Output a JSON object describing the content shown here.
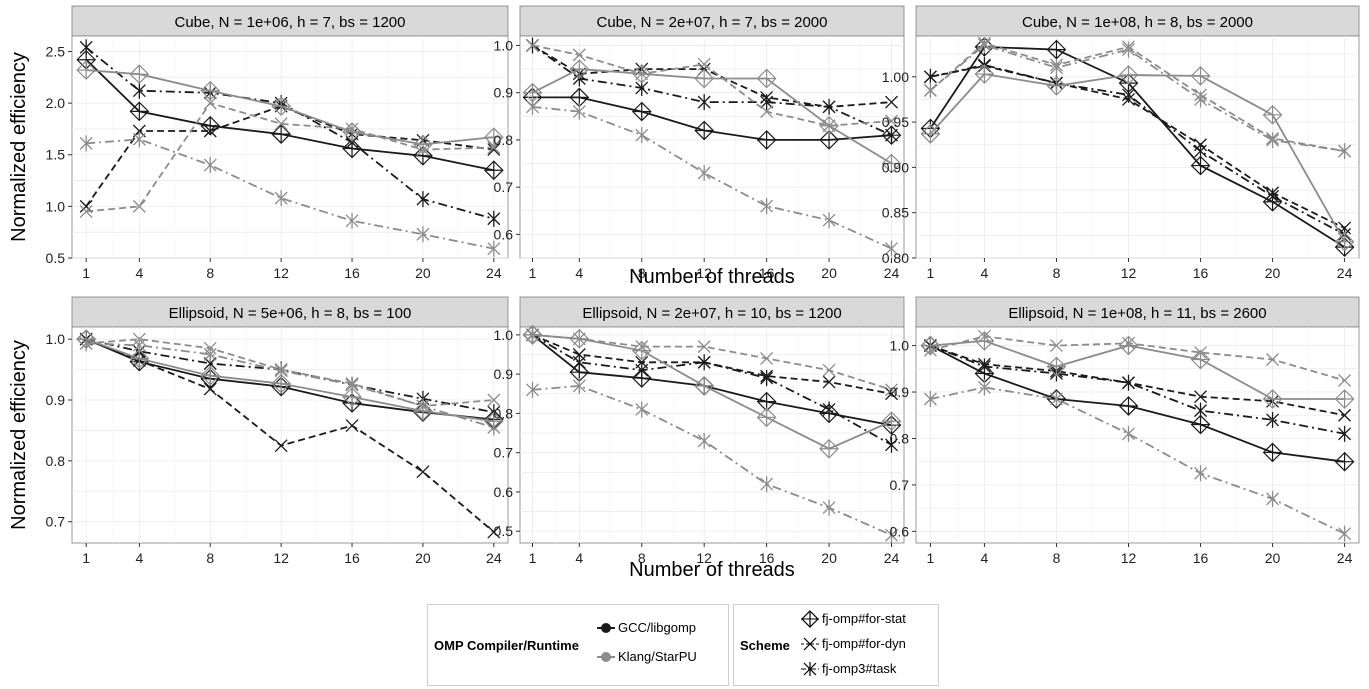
{
  "chart_data": {
    "type": "line",
    "y_axis_label": "Normalized efficiency",
    "x_axis_label": "Number of threads",
    "x_ticks": [
      1,
      4,
      8,
      12,
      16,
      20,
      24
    ],
    "panels": [
      {
        "title": "Cube, N = 1e+06, h = 7, bs = 1200",
        "ylim": [
          0.5,
          2.65
        ],
        "yticks": [
          "0.5",
          "1.0",
          "1.5",
          "2.0",
          "2.5"
        ],
        "series": [
          {
            "runtime": "GCC/libgomp",
            "scheme": "fj-omp#for-stat",
            "values": [
              2.42,
              1.92,
              1.78,
              1.7,
              1.56,
              1.49,
              1.35
            ]
          },
          {
            "runtime": "GCC/libgomp",
            "scheme": "fj-omp#for-dyn",
            "values": [
              1.0,
              1.73,
              1.73,
              1.97,
              1.7,
              1.64,
              1.55
            ]
          },
          {
            "runtime": "GCC/libgomp",
            "scheme": "fj-omp3#task",
            "values": [
              2.54,
              2.12,
              2.1,
              2.0,
              1.62,
              1.07,
              0.88
            ]
          },
          {
            "runtime": "Klang/StarPU",
            "scheme": "fj-omp#for-stat",
            "values": [
              2.32,
              2.28,
              2.12,
              1.97,
              1.72,
              1.6,
              1.67
            ]
          },
          {
            "runtime": "Klang/StarPU",
            "scheme": "fj-omp#for-dyn",
            "values": [
              0.95,
              1.0,
              2.0,
              1.8,
              1.75,
              1.55,
              1.57
            ]
          },
          {
            "runtime": "Klang/StarPU",
            "scheme": "fj-omp3#task",
            "values": [
              1.61,
              1.65,
              1.4,
              1.08,
              0.86,
              0.73,
              0.59
            ]
          }
        ]
      },
      {
        "title": "Cube, N = 2e+07, h = 7, bs = 2000",
        "ylim": [
          0.55,
          1.02
        ],
        "yticks": [
          "0.6",
          "0.7",
          "0.8",
          "0.9",
          "1.0"
        ],
        "series": [
          {
            "runtime": "GCC/libgomp",
            "scheme": "fj-omp#for-stat",
            "values": [
              0.89,
              0.89,
              0.86,
              0.82,
              0.8,
              0.8,
              0.81
            ]
          },
          {
            "runtime": "GCC/libgomp",
            "scheme": "fj-omp#for-dyn",
            "values": [
              1.0,
              0.94,
              0.95,
              0.95,
              0.89,
              0.87,
              0.88
            ]
          },
          {
            "runtime": "GCC/libgomp",
            "scheme": "fj-omp3#task",
            "values": [
              1.0,
              0.93,
              0.91,
              0.88,
              0.88,
              0.87,
              0.81
            ]
          },
          {
            "runtime": "Klang/StarPU",
            "scheme": "fj-omp#for-stat",
            "values": [
              0.9,
              0.95,
              0.94,
              0.93,
              0.93,
              0.83,
              0.75
            ]
          },
          {
            "runtime": "Klang/StarPU",
            "scheme": "fj-omp#for-dyn",
            "values": [
              1.0,
              0.98,
              0.94,
              0.96,
              0.86,
              0.83,
              0.84
            ]
          },
          {
            "runtime": "Klang/StarPU",
            "scheme": "fj-omp3#task",
            "values": [
              0.87,
              0.86,
              0.81,
              0.73,
              0.66,
              0.63,
              0.57
            ]
          }
        ]
      },
      {
        "title": "Cube, N = 1e+08, h = 8, bs = 2000",
        "ylim": [
          0.8,
          1.045
        ],
        "yticks": [
          "0.80",
          "0.85",
          "0.90",
          "0.95",
          "1.00"
        ],
        "series": [
          {
            "runtime": "GCC/libgomp",
            "scheme": "fj-omp#for-stat",
            "values": [
              0.943,
              1.033,
              1.03,
              0.993,
              0.902,
              0.862,
              0.812
            ]
          },
          {
            "runtime": "GCC/libgomp",
            "scheme": "fj-omp#for-dyn",
            "values": [
              1.0,
              1.012,
              0.993,
              0.975,
              0.925,
              0.872,
              0.833
            ]
          },
          {
            "runtime": "GCC/libgomp",
            "scheme": "fj-omp3#task",
            "values": [
              1.0,
              1.013,
              0.993,
              0.98,
              0.918,
              0.868,
              0.826
            ]
          },
          {
            "runtime": "Klang/StarPU",
            "scheme": "fj-omp#for-stat",
            "values": [
              0.937,
              1.003,
              0.99,
              1.002,
              1.001,
              0.958,
              0.818
            ]
          },
          {
            "runtime": "Klang/StarPU",
            "scheme": "fj-omp#for-dyn",
            "values": [
              0.985,
              1.037,
              1.013,
              1.033,
              0.98,
              0.932,
              0.918
            ]
          },
          {
            "runtime": "Klang/StarPU",
            "scheme": "fj-omp3#task",
            "values": [
              0.985,
              1.035,
              1.01,
              1.03,
              0.975,
              0.93,
              0.918
            ]
          }
        ]
      },
      {
        "title": "Ellipsoid, N = 5e+06, h = 8, bs = 100",
        "ylim": [
          0.665,
          1.02
        ],
        "yticks": [
          "0.7",
          "0.8",
          "0.9",
          "1.0"
        ],
        "series": [
          {
            "runtime": "GCC/libgomp",
            "scheme": "fj-omp#for-stat",
            "values": [
              1.0,
              0.963,
              0.935,
              0.922,
              0.895,
              0.88,
              0.868
            ]
          },
          {
            "runtime": "GCC/libgomp",
            "scheme": "fj-omp#for-dyn",
            "values": [
              1.0,
              0.965,
              0.918,
              0.825,
              0.858,
              0.782,
              0.683
            ]
          },
          {
            "runtime": "GCC/libgomp",
            "scheme": "fj-omp3#task",
            "values": [
              1.0,
              0.98,
              0.96,
              0.95,
              0.925,
              0.902,
              0.88
            ]
          },
          {
            "runtime": "Klang/StarPU",
            "scheme": "fj-omp#for-stat",
            "values": [
              1.0,
              0.968,
              0.94,
              0.927,
              0.905,
              0.882,
              0.865
            ]
          },
          {
            "runtime": "Klang/StarPU",
            "scheme": "fj-omp#for-dyn",
            "values": [
              0.993,
              1.0,
              0.985,
              0.95,
              0.927,
              0.89,
              0.9
            ]
          },
          {
            "runtime": "Klang/StarPU",
            "scheme": "fj-omp3#task",
            "values": [
              0.993,
              0.99,
              0.975,
              0.948,
              0.925,
              0.89,
              0.855
            ]
          }
        ]
      },
      {
        "title": "Ellipsoid, N = 2e+07, h = 10, bs = 1200",
        "ylim": [
          0.47,
          1.02
        ],
        "yticks": [
          "0.5",
          "0.6",
          "0.7",
          "0.8",
          "0.9",
          "1.0"
        ],
        "series": [
          {
            "runtime": "GCC/libgomp",
            "scheme": "fj-omp#for-stat",
            "values": [
              1.0,
              0.905,
              0.89,
              0.87,
              0.83,
              0.8,
              0.77
            ]
          },
          {
            "runtime": "GCC/libgomp",
            "scheme": "fj-omp#for-dyn",
            "values": [
              1.0,
              0.95,
              0.93,
              0.93,
              0.895,
              0.88,
              0.85
            ]
          },
          {
            "runtime": "GCC/libgomp",
            "scheme": "fj-omp3#task",
            "values": [
              1.0,
              0.93,
              0.91,
              0.93,
              0.89,
              0.81,
              0.72
            ]
          },
          {
            "runtime": "Klang/StarPU",
            "scheme": "fj-omp#for-stat",
            "values": [
              1.0,
              0.99,
              0.96,
              0.87,
              0.79,
              0.71,
              0.78
            ]
          },
          {
            "runtime": "Klang/StarPU",
            "scheme": "fj-omp#for-dyn",
            "values": [
              1.0,
              0.99,
              0.97,
              0.97,
              0.94,
              0.91,
              0.86
            ]
          },
          {
            "runtime": "Klang/StarPU",
            "scheme": "fj-omp3#task",
            "values": [
              0.86,
              0.87,
              0.81,
              0.73,
              0.62,
              0.56,
              0.49
            ]
          }
        ]
      },
      {
        "title": "Ellipsoid, N = 1e+08, h = 11, bs = 2600",
        "ylim": [
          0.575,
          1.04
        ],
        "yticks": [
          "0.6",
          "0.7",
          "0.8",
          "0.9",
          "1.0"
        ],
        "series": [
          {
            "runtime": "GCC/libgomp",
            "scheme": "fj-omp#for-stat",
            "values": [
              1.0,
              0.94,
              0.885,
              0.87,
              0.83,
              0.77,
              0.75
            ]
          },
          {
            "runtime": "GCC/libgomp",
            "scheme": "fj-omp#for-dyn",
            "values": [
              1.0,
              0.96,
              0.945,
              0.92,
              0.89,
              0.88,
              0.85
            ]
          },
          {
            "runtime": "GCC/libgomp",
            "scheme": "fj-omp3#task",
            "values": [
              1.0,
              0.955,
              0.94,
              0.92,
              0.86,
              0.84,
              0.81
            ]
          },
          {
            "runtime": "Klang/StarPU",
            "scheme": "fj-omp#for-stat",
            "values": [
              1.0,
              1.01,
              0.955,
              1.0,
              0.97,
              0.885,
              0.885
            ]
          },
          {
            "runtime": "Klang/StarPU",
            "scheme": "fj-omp#for-dyn",
            "values": [
              0.99,
              1.02,
              1.0,
              1.005,
              0.985,
              0.97,
              0.925
            ]
          },
          {
            "runtime": "Klang/StarPU",
            "scheme": "fj-omp3#task",
            "values": [
              0.885,
              0.91,
              0.885,
              0.81,
              0.725,
              0.67,
              0.595
            ]
          }
        ]
      }
    ],
    "styles": {
      "runtime_colors": {
        "GCC/libgomp": "#1a1a1a",
        "Klang/StarPU": "#8c8c8c"
      },
      "scheme_dash": {
        "fj-omp#for-stat": "solid",
        "fj-omp#for-dyn": "dashed",
        "fj-omp3#task": "dotdash"
      },
      "scheme_shape": {
        "fj-omp#for-stat": "diamond-plus",
        "fj-omp#for-dyn": "x",
        "fj-omp3#task": "asterisk"
      },
      "panel_strip_color": "#d9d9d9",
      "grid_color": "#ebebeb"
    },
    "legend": {
      "runtime_title": "OMP Compiler/Runtime",
      "runtime_items": [
        "GCC/libgomp",
        "Klang/StarPU"
      ],
      "scheme_title": "Scheme",
      "scheme_items": [
        "fj-omp#for-stat",
        "fj-omp#for-dyn",
        "fj-omp3#task"
      ]
    }
  }
}
